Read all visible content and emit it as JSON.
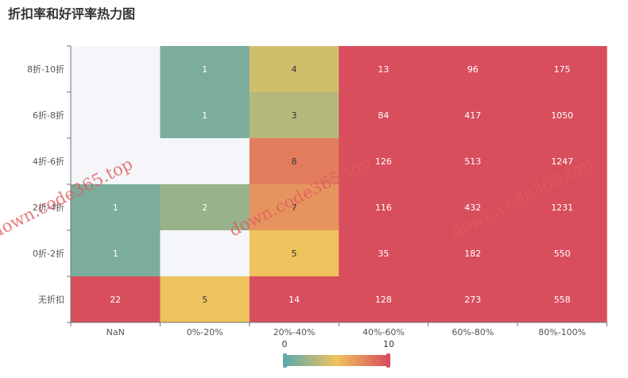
{
  "chart_data": {
    "type": "heatmap",
    "title": "折扣率和好评率热力图",
    "x_categories": [
      "NaN",
      "0%-20%",
      "20%-40%",
      "40%-60%",
      "60%-80%",
      "80%-100%"
    ],
    "y_categories": [
      "8折-10折",
      "6折-8折",
      "4折-6折",
      "2折-4折",
      "0折-2折",
      "无折扣"
    ],
    "cells": [
      {
        "y": "8折-10折",
        "x": "NaN",
        "value": null
      },
      {
        "y": "8折-10折",
        "x": "0%-20%",
        "value": 1
      },
      {
        "y": "8折-10折",
        "x": "20%-40%",
        "value": 4
      },
      {
        "y": "8折-10折",
        "x": "40%-60%",
        "value": 13
      },
      {
        "y": "8折-10折",
        "x": "60%-80%",
        "value": 96
      },
      {
        "y": "8折-10折",
        "x": "80%-100%",
        "value": 175
      },
      {
        "y": "6折-8折",
        "x": "NaN",
        "value": null
      },
      {
        "y": "6折-8折",
        "x": "0%-20%",
        "value": 1
      },
      {
        "y": "6折-8折",
        "x": "20%-40%",
        "value": 3
      },
      {
        "y": "6折-8折",
        "x": "40%-60%",
        "value": 84
      },
      {
        "y": "6折-8折",
        "x": "60%-80%",
        "value": 417
      },
      {
        "y": "6折-8折",
        "x": "80%-100%",
        "value": 1050
      },
      {
        "y": "4折-6折",
        "x": "NaN",
        "value": null
      },
      {
        "y": "4折-6折",
        "x": "0%-20%",
        "value": null
      },
      {
        "y": "4折-6折",
        "x": "20%-40%",
        "value": 8
      },
      {
        "y": "4折-6折",
        "x": "40%-60%",
        "value": 126
      },
      {
        "y": "4折-6折",
        "x": "60%-80%",
        "value": 513
      },
      {
        "y": "4折-6折",
        "x": "80%-100%",
        "value": 1247
      },
      {
        "y": "2折-4折",
        "x": "NaN",
        "value": 1
      },
      {
        "y": "2折-4折",
        "x": "0%-20%",
        "value": 2
      },
      {
        "y": "2折-4折",
        "x": "20%-40%",
        "value": 7
      },
      {
        "y": "2折-4折",
        "x": "40%-60%",
        "value": 116
      },
      {
        "y": "2折-4折",
        "x": "60%-80%",
        "value": 432
      },
      {
        "y": "2折-4折",
        "x": "80%-100%",
        "value": 1231
      },
      {
        "y": "0折-2折",
        "x": "NaN",
        "value": 1
      },
      {
        "y": "0折-2折",
        "x": "0%-20%",
        "value": null
      },
      {
        "y": "0折-2折",
        "x": "20%-40%",
        "value": 5
      },
      {
        "y": "0折-2折",
        "x": "40%-60%",
        "value": 35
      },
      {
        "y": "0折-2折",
        "x": "60%-80%",
        "value": 182
      },
      {
        "y": "0折-2折",
        "x": "80%-100%",
        "value": 550
      },
      {
        "y": "无折扣",
        "x": "NaN",
        "value": 22
      },
      {
        "y": "无折扣",
        "x": "0%-20%",
        "value": 5
      },
      {
        "y": "无折扣",
        "x": "20%-40%",
        "value": 14
      },
      {
        "y": "无折扣",
        "x": "40%-60%",
        "value": 128
      },
      {
        "y": "无折扣",
        "x": "60%-80%",
        "value": 273
      },
      {
        "y": "无折扣",
        "x": "80%-100%",
        "value": 558
      }
    ],
    "visual_map": {
      "min": 0,
      "max": 10,
      "min_label": "0",
      "max_label": "10",
      "colors": [
        "#5fa8ab",
        "#eec35e",
        "#d94e5d"
      ]
    },
    "empty_color": "#f5f6fa"
  },
  "watermarks": [
    "down.code365.top",
    "down.code365.top",
    "down.code365.top"
  ]
}
